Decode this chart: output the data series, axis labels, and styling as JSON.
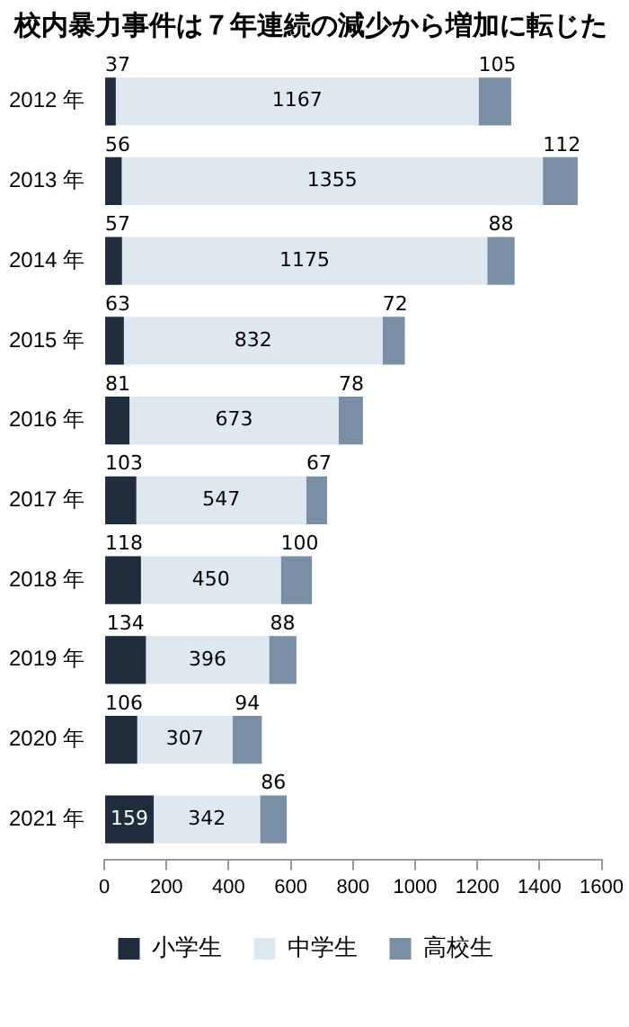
{
  "chart_data": {
    "type": "bar",
    "orientation": "horizontal",
    "stacked": true,
    "title": "校内暴力事件は７年連続の減少から増加に転じた",
    "categories": [
      "2012 年",
      "2013 年",
      "2014 年",
      "2015 年",
      "2016 年",
      "2017 年",
      "2018 年",
      "2019 年",
      "2020 年",
      "2021 年"
    ],
    "series": [
      {
        "name": "小学生",
        "color": "#1f2d3d",
        "values": [
          37,
          56,
          57,
          63,
          81,
          103,
          118,
          134,
          106,
          159
        ]
      },
      {
        "name": "中学生",
        "color": "#dfe8f1",
        "values": [
          1167,
          1355,
          1175,
          832,
          673,
          547,
          450,
          396,
          307,
          342
        ]
      },
      {
        "name": "高校生",
        "color": "#7a8fa3",
        "values": [
          105,
          112,
          88,
          72,
          78,
          67,
          100,
          88,
          94,
          86
        ]
      }
    ],
    "xlim": [
      0,
      1600
    ],
    "xticks": [
      0,
      200,
      400,
      600,
      800,
      1000,
      1200,
      1400,
      1600
    ],
    "grid": false,
    "legend": "bottom",
    "data_labels": true
  }
}
